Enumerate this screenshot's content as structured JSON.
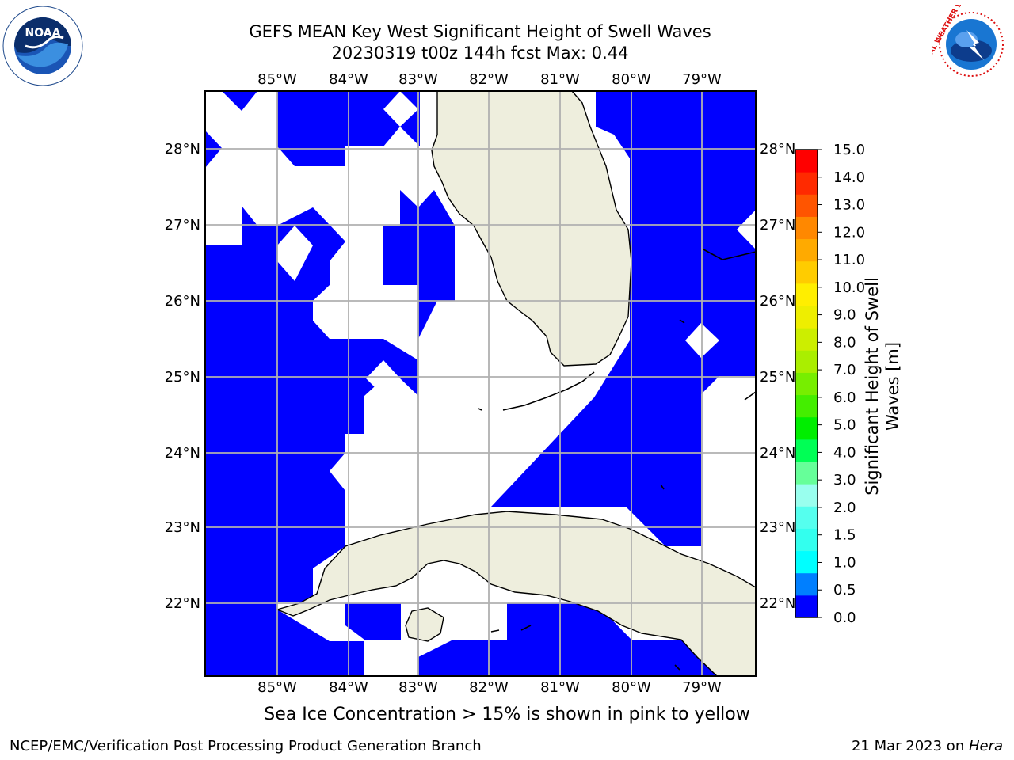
{
  "title": {
    "line1": "GEFS MEAN Key West Significant Height of Swell Waves",
    "line2": "20230319 t00z 144h fcst   Max: 0.44"
  },
  "map": {
    "lon_labels": [
      "85°W",
      "84°W",
      "83°W",
      "82°W",
      "81°W",
      "80°W",
      "79°W"
    ],
    "lat_labels": [
      "28°N",
      "27°N",
      "26°N",
      "25°N",
      "24°N",
      "23°N",
      "22°N"
    ],
    "colors": {
      "water_field": "#0000ff",
      "land": "#eeeedd",
      "grid": "#b0b0b0",
      "frame": "#000000"
    }
  },
  "colorbar": {
    "label": "Significant Height of Swell Waves [m]",
    "label_line1": "Significant Height of Swell",
    "label_line2": "Waves [m]",
    "ticks": [
      "15.0",
      "14.0",
      "13.0",
      "12.0",
      "11.0",
      "10.0",
      "9.0",
      "8.0",
      "7.0",
      "6.0",
      "5.0",
      "4.0",
      "3.0",
      "2.0",
      "1.5",
      "1.0",
      "0.5",
      "0.0"
    ],
    "colors_bottom_to_top": [
      "#0000ff",
      "#007fff",
      "#00ffff",
      "#33ffee",
      "#55ffee",
      "#99ffee",
      "#66ff99",
      "#00ff55",
      "#00ee00",
      "#44ee00",
      "#77ee00",
      "#aaee00",
      "#ccee00",
      "#eeee00",
      "#ffee00",
      "#ffcc00",
      "#ffaa00",
      "#ff8800",
      "#ff5500",
      "#ff2a00",
      "#ff0000"
    ]
  },
  "note": "Sea Ice Concentration > 15% is shown in pink to yellow",
  "footer": {
    "left": "NCEP/EMC/Verification Post Processing Product Generation Branch",
    "right_date": "21 Mar 2023 on ",
    "right_host": "Hera"
  },
  "logos": {
    "noaa": "NOAA",
    "nws": "NATIONAL WEATHER SERVICE"
  }
}
